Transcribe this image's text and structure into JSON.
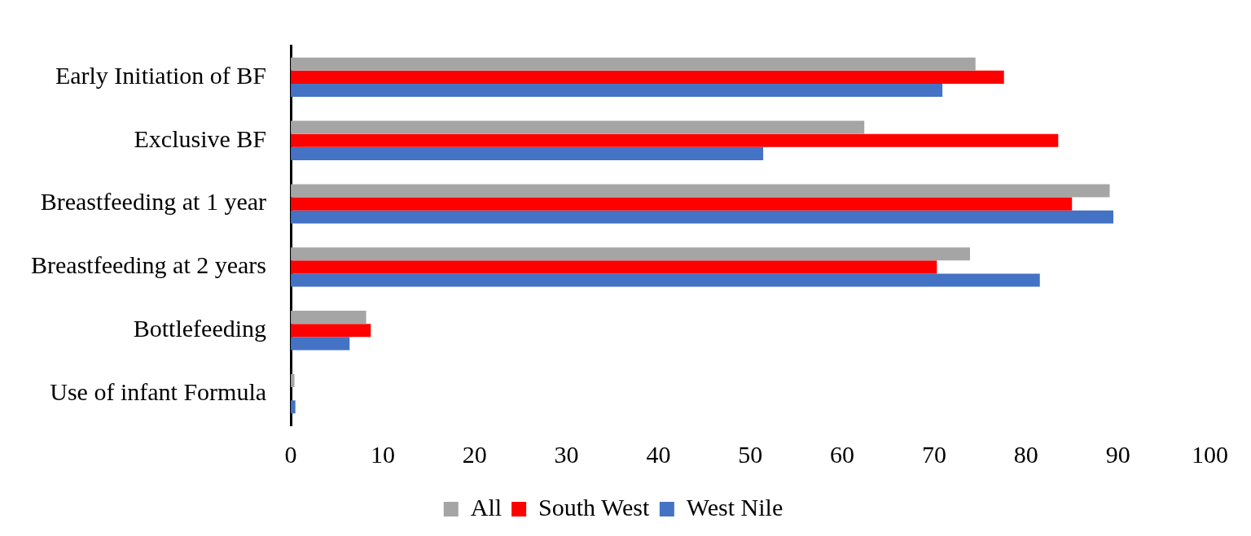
{
  "chart_data": {
    "type": "bar",
    "orientation": "horizontal",
    "categories": [
      "Early Initiation of BF",
      "Exclusive BF",
      "Breastfeeding at 1 year",
      "Breastfeeding at 2 years",
      "Bottlefeeding",
      "Use of infant Formula"
    ],
    "series": [
      {
        "name": "All",
        "color": "#a5a5a5",
        "values": [
          74.5,
          62.4,
          89.1,
          73.9,
          8.2,
          0.4
        ]
      },
      {
        "name": "South West",
        "color": "#ff0000",
        "values": [
          77.6,
          83.5,
          85.0,
          70.3,
          8.7,
          0
        ]
      },
      {
        "name": "West Nile",
        "color": "#4472c4",
        "values": [
          70.9,
          51.4,
          89.5,
          81.5,
          6.4,
          0.5
        ]
      }
    ],
    "xlim": [
      0,
      100
    ],
    "xticks": [
      0,
      10,
      20,
      30,
      40,
      50,
      60,
      70,
      80,
      90,
      100
    ],
    "grid": false,
    "legend": "bottom"
  }
}
